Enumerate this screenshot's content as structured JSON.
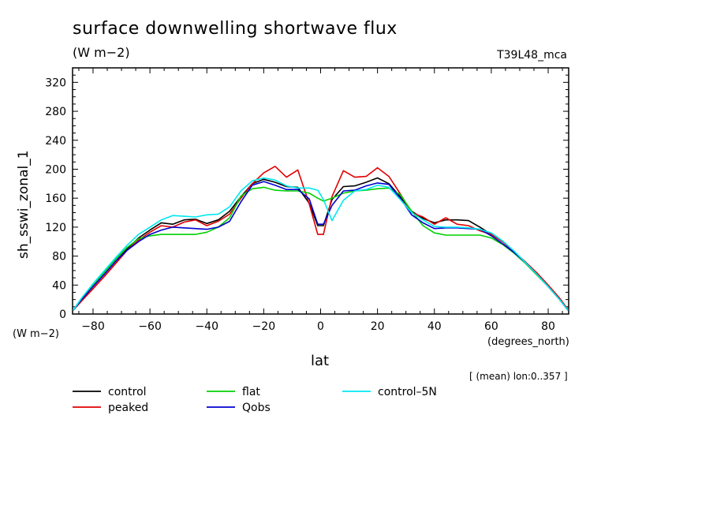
{
  "header": {
    "title": "surface downwelling shortwave flux",
    "units": "(W m−2)",
    "run_id": "T39L48_mca"
  },
  "axes": {
    "y_units_label": "(W m−2)",
    "x_units_label": "(degrees_north)",
    "footer_note": "[ (mean) lon:0..357 ]"
  },
  "chart_data": {
    "type": "line",
    "title": "surface downwelling shortwave flux",
    "xlabel": "lat",
    "ylabel": "sh_sswi_zonal_1",
    "xlim": [
      -87.2,
      87.2
    ],
    "ylim": [
      0,
      340
    ],
    "x_ticks": [
      -80,
      -60,
      -40,
      -20,
      0,
      20,
      40,
      60,
      80
    ],
    "y_ticks": [
      0,
      40,
      80,
      120,
      160,
      200,
      240,
      280,
      320
    ],
    "grid": false,
    "legend_position": "bottom",
    "series": [
      {
        "name": "control",
        "color": "#000000",
        "x": [
          -87,
          -84,
          -80,
          -76,
          -72,
          -68,
          -64,
          -60,
          -56,
          -52,
          -48,
          -44,
          -40,
          -36,
          -32,
          -28,
          -24,
          -20,
          -16,
          -12,
          -8,
          -4,
          -1,
          1,
          4,
          8,
          12,
          16,
          20,
          24,
          28,
          32,
          36,
          40,
          44,
          48,
          52,
          56,
          60,
          64,
          68,
          72,
          76,
          80,
          84,
          87
        ],
        "y": [
          5,
          20,
          38,
          55,
          73,
          90,
          105,
          116,
          126,
          124,
          130,
          131,
          125,
          130,
          142,
          162,
          180,
          186,
          182,
          176,
          175,
          153,
          122,
          122,
          158,
          176,
          177,
          182,
          188,
          180,
          162,
          142,
          132,
          126,
          130,
          130,
          129,
          120,
          110,
          100,
          86,
          71,
          55,
          38,
          20,
          5
        ]
      },
      {
        "name": "peaked",
        "color": "#e00000",
        "x": [
          -87,
          -84,
          -80,
          -76,
          -72,
          -68,
          -64,
          -60,
          -56,
          -52,
          -48,
          -44,
          -40,
          -36,
          -32,
          -28,
          -24,
          -20,
          -16,
          -12,
          -8,
          -4,
          -1,
          1,
          4,
          8,
          12,
          16,
          20,
          24,
          28,
          32,
          36,
          40,
          44,
          48,
          52,
          56,
          60,
          64,
          68,
          72,
          76,
          80,
          84,
          87
        ],
        "y": [
          5,
          18,
          35,
          52,
          70,
          88,
          102,
          113,
          122,
          120,
          127,
          130,
          122,
          128,
          138,
          160,
          180,
          195,
          204,
          189,
          199,
          152,
          110,
          110,
          162,
          198,
          189,
          190,
          202,
          190,
          166,
          140,
          134,
          124,
          133,
          124,
          122,
          115,
          110,
          100,
          86,
          72,
          57,
          40,
          22,
          6
        ]
      },
      {
        "name": "flat",
        "color": "#00d000",
        "x": [
          -87,
          -84,
          -80,
          -76,
          -72,
          -68,
          -64,
          -60,
          -56,
          -52,
          -48,
          -44,
          -40,
          -36,
          -32,
          -28,
          -24,
          -20,
          -16,
          -12,
          -8,
          -4,
          -1,
          1,
          4,
          8,
          12,
          16,
          20,
          24,
          28,
          32,
          36,
          40,
          44,
          48,
          52,
          56,
          60,
          64,
          68,
          72,
          76,
          80,
          84,
          87
        ],
        "y": [
          5,
          22,
          40,
          58,
          76,
          92,
          104,
          108,
          110,
          110,
          110,
          110,
          113,
          120,
          133,
          163,
          173,
          175,
          171,
          170,
          170,
          167,
          160,
          156,
          160,
          167,
          170,
          171,
          173,
          174,
          165,
          142,
          122,
          112,
          109,
          109,
          109,
          109,
          105,
          96,
          84,
          70,
          54,
          38,
          20,
          5
        ]
      },
      {
        "name": "Qobs",
        "color": "#0000d0",
        "x": [
          -87,
          -84,
          -80,
          -76,
          -72,
          -68,
          -64,
          -60,
          -56,
          -52,
          -48,
          -44,
          -40,
          -36,
          -32,
          -28,
          -24,
          -20,
          -16,
          -12,
          -8,
          -4,
          -1,
          1,
          4,
          8,
          12,
          16,
          20,
          24,
          28,
          32,
          36,
          40,
          44,
          48,
          52,
          56,
          60,
          64,
          68,
          72,
          76,
          80,
          84,
          87
        ],
        "y": [
          5,
          20,
          38,
          55,
          73,
          88,
          100,
          110,
          116,
          120,
          119,
          118,
          117,
          120,
          128,
          155,
          178,
          183,
          178,
          172,
          172,
          159,
          124,
          124,
          150,
          170,
          171,
          177,
          181,
          179,
          160,
          137,
          126,
          118,
          119,
          119,
          118,
          117,
          108,
          97,
          85,
          71,
          55,
          38,
          20,
          5
        ]
      },
      {
        "name": "control–5N",
        "color": "#00e8f0",
        "x": [
          -87,
          -84,
          -80,
          -76,
          -72,
          -68,
          -64,
          -60,
          -56,
          -52,
          -48,
          -44,
          -40,
          -36,
          -32,
          -28,
          -24,
          -20,
          -16,
          -12,
          -8,
          -4,
          -1,
          1,
          4,
          8,
          12,
          16,
          20,
          24,
          28,
          32,
          36,
          40,
          44,
          48,
          52,
          56,
          60,
          64,
          68,
          72,
          76,
          80,
          84,
          87
        ],
        "y": [
          5,
          22,
          42,
          60,
          78,
          95,
          110,
          120,
          130,
          136,
          135,
          134,
          137,
          138,
          148,
          170,
          184,
          188,
          185,
          177,
          174,
          174,
          171,
          158,
          129,
          157,
          170,
          172,
          178,
          175,
          158,
          140,
          130,
          121,
          120,
          120,
          119,
          117,
          112,
          101,
          87,
          71,
          55,
          38,
          20,
          5
        ]
      }
    ]
  }
}
